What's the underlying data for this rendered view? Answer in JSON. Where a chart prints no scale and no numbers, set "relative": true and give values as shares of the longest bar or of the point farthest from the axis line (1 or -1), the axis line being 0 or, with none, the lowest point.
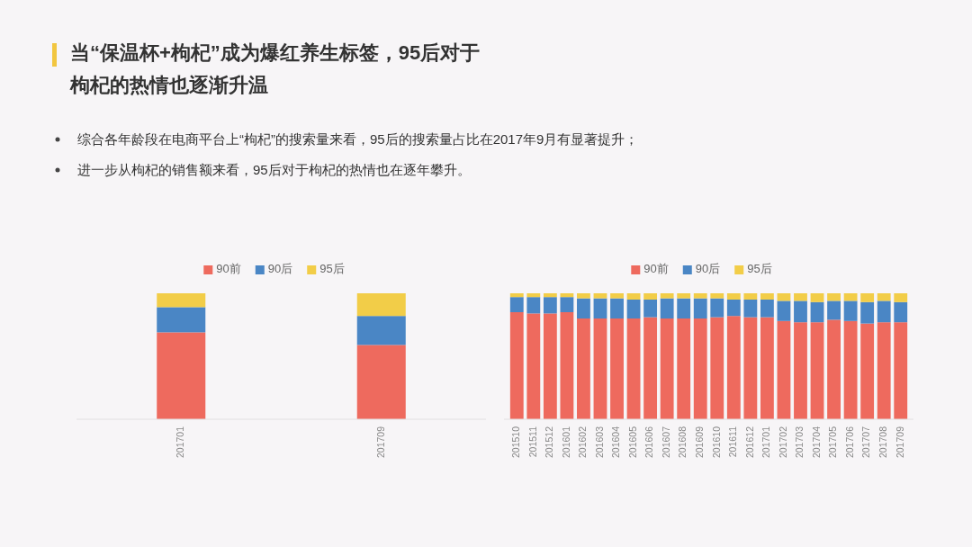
{
  "chart_data": [
    {
      "type": "other",
      "title": "当“保温杯+枸杞”成为爆红养生标签，95后对于枸杞的热情也逐渐升温",
      "annotations": [
        "综合各年龄段在电商平台上“枸杞”的搜索量来看，95后的搜索量占比在2017年9月有显著提升；",
        "进一步从枸杞的销售额来看，95后对于枸杞的热情也在逐年攀升。"
      ]
    },
    {
      "type": "bar",
      "stacked": true,
      "relative": true,
      "legend": "top",
      "categories": [
        "201701",
        "201709"
      ],
      "series": [
        {
          "name": "90前",
          "color": "#ee6a5e",
          "values": [
            0.69,
            0.59
          ]
        },
        {
          "name": "90后",
          "color": "#4a86c5",
          "values": [
            0.2,
            0.23
          ]
        },
        {
          "name": "95后",
          "color": "#f2cd48",
          "values": [
            0.11,
            0.18
          ]
        }
      ]
    },
    {
      "type": "bar",
      "stacked": true,
      "relative": true,
      "legend": "top",
      "categories": [
        "201510",
        "201511",
        "201512",
        "201601",
        "201602",
        "201603",
        "201604",
        "201605",
        "201606",
        "201607",
        "201608",
        "201609",
        "201610",
        "201611",
        "201612",
        "201701",
        "201702",
        "201703",
        "201704",
        "201705",
        "201706",
        "201707",
        "201708",
        "201709"
      ],
      "series": [
        {
          "name": "90前",
          "color": "#ee6a5e",
          "values": [
            0.85,
            0.84,
            0.84,
            0.85,
            0.8,
            0.8,
            0.8,
            0.8,
            0.81,
            0.8,
            0.8,
            0.8,
            0.81,
            0.82,
            0.81,
            0.81,
            0.78,
            0.77,
            0.77,
            0.79,
            0.78,
            0.76,
            0.77,
            0.77
          ]
        },
        {
          "name": "90后",
          "color": "#4a86c5",
          "values": [
            0.12,
            0.13,
            0.13,
            0.12,
            0.16,
            0.16,
            0.16,
            0.15,
            0.14,
            0.16,
            0.16,
            0.16,
            0.15,
            0.13,
            0.14,
            0.14,
            0.16,
            0.17,
            0.16,
            0.15,
            0.16,
            0.17,
            0.17,
            0.16
          ]
        },
        {
          "name": "95后",
          "color": "#f2cd48",
          "values": [
            0.03,
            0.03,
            0.03,
            0.03,
            0.04,
            0.04,
            0.04,
            0.05,
            0.05,
            0.04,
            0.04,
            0.04,
            0.04,
            0.05,
            0.05,
            0.05,
            0.06,
            0.06,
            0.07,
            0.06,
            0.06,
            0.07,
            0.06,
            0.07
          ]
        }
      ]
    }
  ]
}
